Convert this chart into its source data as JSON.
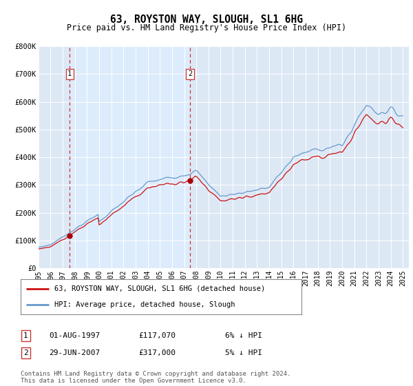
{
  "title": "63, ROYSTON WAY, SLOUGH, SL1 6HG",
  "subtitle": "Price paid vs. HM Land Registry's House Price Index (HPI)",
  "legend_line1": "63, ROYSTON WAY, SLOUGH, SL1 6HG (detached house)",
  "legend_line2": "HPI: Average price, detached house, Slough",
  "transaction1_label": "1",
  "transaction1_date": "01-AUG-1997",
  "transaction1_price": "£117,070",
  "transaction1_hpi": "6% ↓ HPI",
  "transaction2_label": "2",
  "transaction2_date": "29-JUN-2007",
  "transaction2_price": "£317,000",
  "transaction2_hpi": "5% ↓ HPI",
  "footer": "Contains HM Land Registry data © Crown copyright and database right 2024.\nThis data is licensed under the Open Government Licence v3.0.",
  "xmin": 1995.0,
  "xmax": 2025.5,
  "ymin": 0,
  "ymax": 800000,
  "yticks": [
    0,
    100000,
    200000,
    300000,
    400000,
    500000,
    600000,
    700000,
    800000
  ],
  "ytick_labels": [
    "£0",
    "£100K",
    "£200K",
    "£300K",
    "£400K",
    "£500K",
    "£600K",
    "£700K",
    "£800K"
  ],
  "xticks": [
    1995,
    1996,
    1997,
    1998,
    1999,
    2000,
    2001,
    2002,
    2003,
    2004,
    2005,
    2006,
    2007,
    2008,
    2009,
    2010,
    2011,
    2012,
    2013,
    2014,
    2015,
    2016,
    2017,
    2018,
    2019,
    2020,
    2021,
    2022,
    2023,
    2024,
    2025
  ],
  "hpi_color": "#6699cc",
  "price_color": "#cc1111",
  "marker_color": "#aa0000",
  "dashed_color": "#cc3333",
  "transaction1_x": 1997.58,
  "transaction1_y": 117070,
  "transaction2_x": 2007.49,
  "transaction2_y": 317000,
  "bg_color": "#dde8f5",
  "shade_color": "#ddeeff"
}
